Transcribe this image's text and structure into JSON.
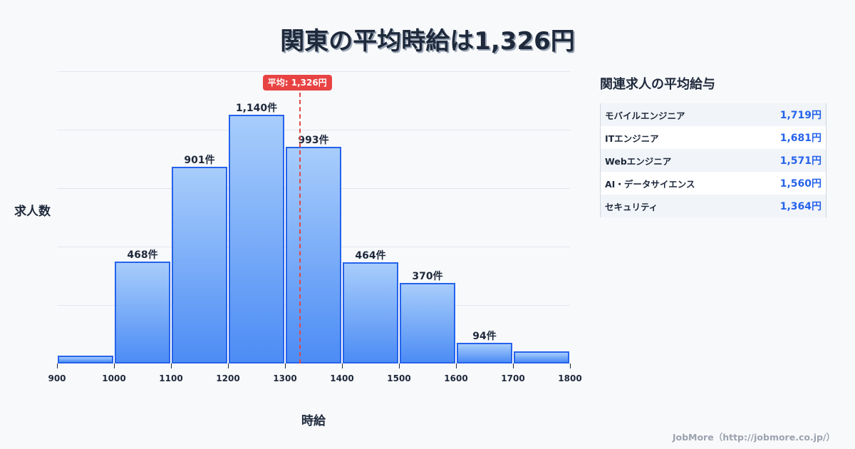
{
  "title": "関東の平均時給は1,326円",
  "chart_data": {
    "type": "bar",
    "title": "関東の平均時給は1,326円",
    "xlabel": "時給",
    "ylabel": "求人数",
    "bins": [
      900,
      1000,
      1100,
      1200,
      1300,
      1400,
      1500,
      1600,
      1700,
      1800
    ],
    "categories": [
      "900-1000",
      "1000-1100",
      "1100-1200",
      "1200-1300",
      "1300-1400",
      "1400-1500",
      "1500-1600",
      "1600-1700",
      "1700-1800"
    ],
    "values": [
      37,
      468,
      901,
      1140,
      993,
      464,
      370,
      94,
      55
    ],
    "labels": [
      "",
      "468件",
      "901件",
      "1,140件",
      "993件",
      "464件",
      "370件",
      "94件",
      ""
    ],
    "xlim": [
      900,
      1800
    ],
    "ylim": [
      0,
      1250
    ],
    "grid": true,
    "average": 1326,
    "average_label": "平均: 1,326円"
  },
  "axis": {
    "ticks": [
      "900",
      "1000",
      "1100",
      "1200",
      "1300",
      "1400",
      "1500",
      "1600",
      "1700",
      "1800"
    ]
  },
  "side_panel": {
    "title": "関連求人の平均給与",
    "rows": [
      {
        "name": "モバイルエンジニア",
        "value": "1,719円"
      },
      {
        "name": "ITエンジニア",
        "value": "1,681円"
      },
      {
        "name": "Webエンジニア",
        "value": "1,571円"
      },
      {
        "name": "AI・データサイエンス",
        "value": "1,560円"
      },
      {
        "name": "セキュリティ",
        "value": "1,364円"
      }
    ]
  },
  "footer": "JobMore（http://jobmore.co.jp/）",
  "colors": {
    "bar_border": "#2563eb",
    "bar_top": "#a8cdfb",
    "bar_bottom": "#4c8cf5",
    "average_line": "#e04848",
    "value_text": "#2563eb"
  }
}
